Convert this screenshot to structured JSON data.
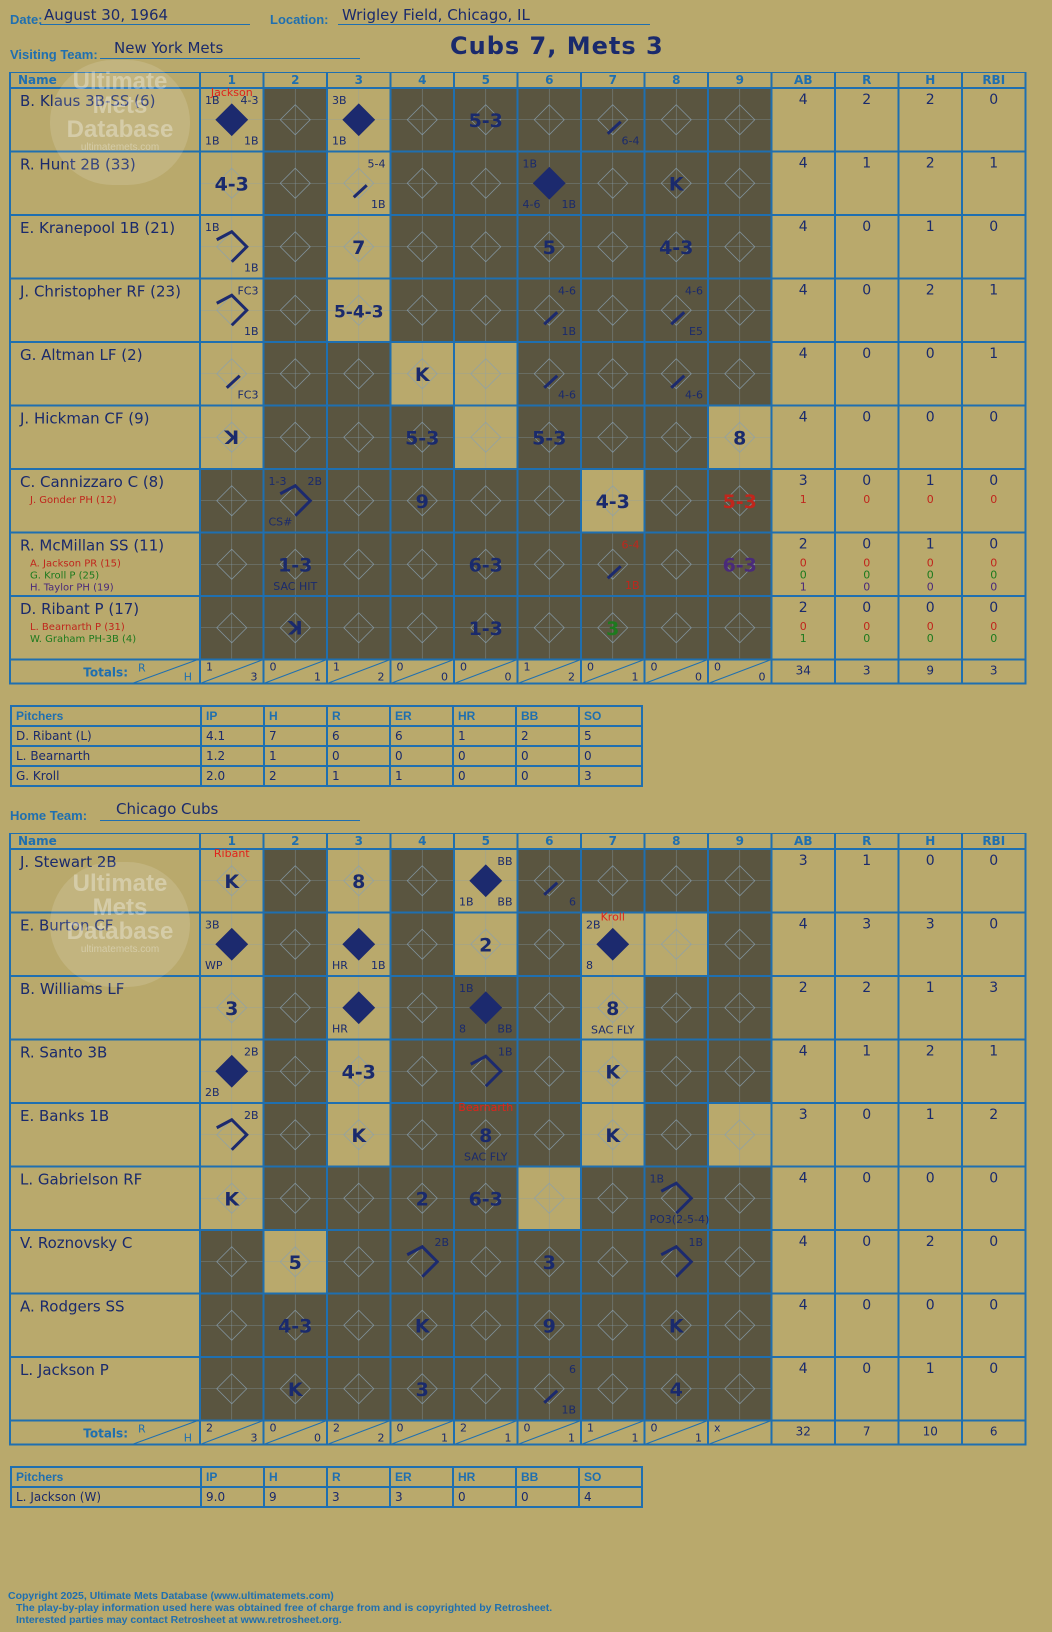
{
  "header": {
    "date_label": "Date:",
    "date": "August 30, 1964",
    "location_label": "Location:",
    "location": "Wrigley Field, Chicago, IL",
    "visiting_label": "Visiting Team:",
    "visiting_team": "New York Mets",
    "home_label": "Home Team:",
    "home_team": "Chicago Cubs",
    "title": "Cubs 7, Mets 3"
  },
  "columns": {
    "name": "Name",
    "innings": [
      "1",
      "2",
      "3",
      "4",
      "5",
      "6",
      "7",
      "8",
      "9"
    ],
    "stats": [
      "AB",
      "R",
      "H",
      "RBI"
    ],
    "totals": "Totals:",
    "r": "R",
    "h": "H"
  },
  "visitor": {
    "players": [
      {
        "name": "B. Klaus 3B-SS (6)",
        "subs": [],
        "stats": [
          [
            "4"
          ],
          [
            "2"
          ],
          [
            "2"
          ],
          [
            "0"
          ]
        ]
      },
      {
        "name": "R. Hunt 2B (33)",
        "subs": [],
        "stats": [
          [
            "4"
          ],
          [
            "1"
          ],
          [
            "2"
          ],
          [
            "1"
          ]
        ]
      },
      {
        "name": "E. Kranepool 1B (21)",
        "subs": [],
        "stats": [
          [
            "4"
          ],
          [
            "0"
          ],
          [
            "1"
          ],
          [
            "0"
          ]
        ]
      },
      {
        "name": "J. Christopher RF (23)",
        "subs": [],
        "stats": [
          [
            "4"
          ],
          [
            "0"
          ],
          [
            "2"
          ],
          [
            "1"
          ]
        ]
      },
      {
        "name": "G. Altman LF (2)",
        "subs": [],
        "stats": [
          [
            "4"
          ],
          [
            "0"
          ],
          [
            "0"
          ],
          [
            "1"
          ]
        ]
      },
      {
        "name": "J. Hickman CF (9)",
        "subs": [],
        "stats": [
          [
            "4"
          ],
          [
            "0"
          ],
          [
            "0"
          ],
          [
            "0"
          ]
        ]
      },
      {
        "name": "C. Cannizzaro C (8)",
        "subs": [
          {
            "n": "J. Gonder PH (12)",
            "c": "#c0261c"
          }
        ],
        "stats": [
          [
            "3",
            "1"
          ],
          [
            "0",
            "0"
          ],
          [
            "1",
            "0"
          ],
          [
            "0",
            "0"
          ]
        ]
      },
      {
        "name": "R. McMillan SS (11)",
        "subs": [
          {
            "n": "A. Jackson PR (15)",
            "c": "#c0261c"
          },
          {
            "n": "G. Kroll P (25)",
            "c": "#1e7a1e"
          },
          {
            "n": "H. Taylor PH (19)",
            "c": "#4a2a7a"
          }
        ],
        "stats": [
          [
            "2",
            "0",
            "0",
            "1"
          ],
          [
            "0",
            "0",
            "0",
            "0"
          ],
          [
            "1",
            "0",
            "0",
            "0"
          ],
          [
            "0",
            "0",
            "0",
            "0"
          ]
        ]
      },
      {
        "name": "D. Ribant P (17)",
        "subs": [
          {
            "n": "L. Bearnarth P (31)",
            "c": "#c0261c"
          },
          {
            "n": "W. Graham PH-3B (4)",
            "c": "#1e7a1e"
          }
        ],
        "stats": [
          [
            "2",
            "0",
            "1"
          ],
          [
            "0",
            "0",
            "0"
          ],
          [
            "0",
            "0",
            "0"
          ],
          [
            "0",
            "0",
            "0"
          ]
        ]
      }
    ],
    "cells": [
      {
        "r": 0,
        "c": 0,
        "t": [
          [
            "1B",
            "tl"
          ],
          [
            "4-3",
            "tr"
          ],
          [
            "1B",
            "bl"
          ],
          [
            "1B",
            "br"
          ]
        ],
        "d": "full",
        "note": "Jackson"
      },
      {
        "r": 0,
        "c": 2,
        "t": [
          [
            "3B",
            "tl"
          ],
          [
            "1B",
            "bl"
          ]
        ],
        "d": "full"
      },
      {
        "r": 0,
        "c": 4,
        "big": "5-3"
      },
      {
        "r": 0,
        "c": 6,
        "t": [
          [
            "6-4",
            "br"
          ]
        ],
        "slash": true
      },
      {
        "r": 1,
        "c": 0,
        "big": "4-3"
      },
      {
        "r": 1,
        "c": 2,
        "t": [
          [
            "5-4",
            "tr"
          ],
          [
            "1B",
            "br"
          ]
        ],
        "slash": true
      },
      {
        "r": 1,
        "c": 5,
        "t": [
          [
            "1B",
            "tl"
          ],
          [
            "4-6",
            "bl"
          ],
          [
            "1B",
            "br"
          ]
        ],
        "d": "full"
      },
      {
        "r": 1,
        "c": 7,
        "big": "K"
      },
      {
        "r": 2,
        "c": 0,
        "t": [
          [
            "1B",
            "tl"
          ],
          [
            "1B",
            "br"
          ]
        ],
        "d": "half"
      },
      {
        "r": 2,
        "c": 2,
        "big": "7"
      },
      {
        "r": 2,
        "c": 5,
        "big": "5"
      },
      {
        "r": 2,
        "c": 7,
        "big": "4-3"
      },
      {
        "r": 3,
        "c": 0,
        "t": [
          [
            "FC3",
            "tr"
          ],
          [
            "1B",
            "br"
          ]
        ],
        "d": "half"
      },
      {
        "r": 3,
        "c": 2,
        "big": "5-4-3"
      },
      {
        "r": 3,
        "c": 5,
        "t": [
          [
            "4-6",
            "tr"
          ],
          [
            "1B",
            "br"
          ]
        ],
        "slash": true
      },
      {
        "r": 3,
        "c": 7,
        "t": [
          [
            "4-6",
            "tr"
          ],
          [
            "E5",
            "br"
          ]
        ],
        "slash": true
      },
      {
        "r": 4,
        "c": 0,
        "t": [
          [
            "FC3",
            "br"
          ]
        ],
        "slash": true
      },
      {
        "r": 4,
        "c": 3,
        "big": "K"
      },
      {
        "r": 4,
        "c": 5,
        "t": [
          [
            "4-6",
            "br"
          ]
        ],
        "slash": true
      },
      {
        "r": 4,
        "c": 7,
        "t": [
          [
            "4-6",
            "br"
          ]
        ],
        "slash": true
      },
      {
        "r": 5,
        "c": 0,
        "big": "K",
        "rev": true
      },
      {
        "r": 5,
        "c": 3,
        "big": "5-3"
      },
      {
        "r": 5,
        "c": 5,
        "big": "5-3"
      },
      {
        "r": 5,
        "c": 8,
        "big": "8"
      },
      {
        "r": 6,
        "c": 1,
        "t": [
          [
            "1-3",
            "tl"
          ],
          [
            "2B",
            "tr"
          ],
          [
            "CS#",
            "bl"
          ]
        ],
        "d": "half"
      },
      {
        "r": 6,
        "c": 3,
        "big": "9"
      },
      {
        "r": 6,
        "c": 6,
        "big": "4-3"
      },
      {
        "r": 6,
        "c": 8,
        "big": "5-3",
        "col": "#c0261c"
      },
      {
        "r": 7,
        "c": 1,
        "big": "1-3",
        "t": [
          [
            "SAC HIT",
            "bw"
          ]
        ]
      },
      {
        "r": 7,
        "c": 4,
        "big": "6-3"
      },
      {
        "r": 7,
        "c": 6,
        "t": [
          [
            "6-4",
            "tr"
          ],
          [
            "1B",
            "br"
          ]
        ],
        "slash": true,
        "tcol": "#c0261c"
      },
      {
        "r": 7,
        "c": 8,
        "big": "6-3",
        "col": "#4a2a7a"
      },
      {
        "r": 8,
        "c": 1,
        "big": "K",
        "rev": true
      },
      {
        "r": 8,
        "c": 4,
        "big": "1-3"
      },
      {
        "r": 8,
        "c": 6,
        "big": "3",
        "col": "#1e7a1e"
      }
    ],
    "totals": [
      [
        "1",
        "3"
      ],
      [
        "0",
        "1"
      ],
      [
        "1",
        "2"
      ],
      [
        "0",
        "0"
      ],
      [
        "0",
        "0"
      ],
      [
        "1",
        "2"
      ],
      [
        "0",
        "1"
      ],
      [
        "0",
        "0"
      ],
      [
        "0",
        "0"
      ]
    ],
    "total_stats": [
      "34",
      "3",
      "9",
      "3"
    ],
    "pitchers_header": [
      "Pitchers",
      "IP",
      "H",
      "R",
      "ER",
      "HR",
      "BB",
      "SO"
    ],
    "pitchers": [
      [
        "D. Ribant (L)",
        "4.1",
        "7",
        "6",
        "6",
        "1",
        "2",
        "5"
      ],
      [
        "L. Bearnarth",
        "1.2",
        "1",
        "0",
        "0",
        "0",
        "0",
        "0"
      ],
      [
        "G. Kroll",
        "2.0",
        "2",
        "1",
        "1",
        "0",
        "0",
        "3"
      ]
    ]
  },
  "home": {
    "players": [
      {
        "name": "J. Stewart 2B",
        "subs": [],
        "stats": [
          [
            "3"
          ],
          [
            "1"
          ],
          [
            "0"
          ],
          [
            "0"
          ]
        ]
      },
      {
        "name": "E. Burton CF",
        "subs": [],
        "stats": [
          [
            "4"
          ],
          [
            "3"
          ],
          [
            "3"
          ],
          [
            "0"
          ]
        ]
      },
      {
        "name": "B. Williams LF",
        "subs": [],
        "stats": [
          [
            "2"
          ],
          [
            "2"
          ],
          [
            "1"
          ],
          [
            "3"
          ]
        ]
      },
      {
        "name": "R. Santo 3B",
        "subs": [],
        "stats": [
          [
            "4"
          ],
          [
            "1"
          ],
          [
            "2"
          ],
          [
            "1"
          ]
        ]
      },
      {
        "name": "E. Banks 1B",
        "subs": [],
        "stats": [
          [
            "3"
          ],
          [
            "0"
          ],
          [
            "1"
          ],
          [
            "2"
          ]
        ]
      },
      {
        "name": "L. Gabrielson RF",
        "subs": [],
        "stats": [
          [
            "4"
          ],
          [
            "0"
          ],
          [
            "0"
          ],
          [
            "0"
          ]
        ]
      },
      {
        "name": "V. Roznovsky C",
        "subs": [],
        "stats": [
          [
            "4"
          ],
          [
            "0"
          ],
          [
            "2"
          ],
          [
            "0"
          ]
        ]
      },
      {
        "name": "A. Rodgers SS",
        "subs": [],
        "stats": [
          [
            "4"
          ],
          [
            "0"
          ],
          [
            "0"
          ],
          [
            "0"
          ]
        ]
      },
      {
        "name": "L. Jackson P",
        "subs": [],
        "stats": [
          [
            "4"
          ],
          [
            "0"
          ],
          [
            "1"
          ],
          [
            "0"
          ]
        ]
      }
    ],
    "cells": [
      {
        "r": 0,
        "c": 0,
        "big": "K",
        "note": "Ribant"
      },
      {
        "r": 0,
        "c": 2,
        "big": "8"
      },
      {
        "r": 0,
        "c": 4,
        "t": [
          [
            "BB",
            "tr"
          ],
          [
            "1B",
            "bl"
          ],
          [
            "BB",
            "br"
          ]
        ],
        "d": "full"
      },
      {
        "r": 0,
        "c": 5,
        "t": [
          [
            "6",
            "br"
          ]
        ],
        "slash": true
      },
      {
        "r": 1,
        "c": 0,
        "t": [
          [
            "3B",
            "tl"
          ],
          [
            "WP",
            "bl"
          ]
        ],
        "d": "full"
      },
      {
        "r": 1,
        "c": 2,
        "t": [
          [
            "HR",
            "bl"
          ],
          [
            "1B",
            "br"
          ]
        ],
        "d": "full"
      },
      {
        "r": 1,
        "c": 4,
        "big": "2"
      },
      {
        "r": 1,
        "c": 6,
        "t": [
          [
            "2B",
            "tl"
          ],
          [
            "8",
            "bl"
          ]
        ],
        "d": "full",
        "note": "Kroll"
      },
      {
        "r": 2,
        "c": 0,
        "big": "3"
      },
      {
        "r": 2,
        "c": 2,
        "t": [
          [
            "HR",
            "bl"
          ]
        ],
        "d": "full"
      },
      {
        "r": 2,
        "c": 4,
        "t": [
          [
            "1B",
            "tl"
          ],
          [
            "8",
            "bl"
          ],
          [
            "BB",
            "br"
          ]
        ],
        "d": "full"
      },
      {
        "r": 2,
        "c": 6,
        "big": "8",
        "t": [
          [
            "SAC FLY",
            "bw"
          ]
        ]
      },
      {
        "r": 3,
        "c": 0,
        "t": [
          [
            "2B",
            "tr"
          ],
          [
            "2B",
            "bl"
          ]
        ],
        "d": "full"
      },
      {
        "r": 3,
        "c": 2,
        "big": "4-3"
      },
      {
        "r": 3,
        "c": 4,
        "t": [
          [
            "1B",
            "tr"
          ]
        ],
        "d": "half"
      },
      {
        "r": 3,
        "c": 6,
        "big": "K"
      },
      {
        "r": 4,
        "c": 0,
        "t": [
          [
            "2B",
            "tr"
          ]
        ],
        "d": "half"
      },
      {
        "r": 4,
        "c": 2,
        "big": "K"
      },
      {
        "r": 4,
        "c": 4,
        "big": "8",
        "t": [
          [
            "SAC FLY",
            "bw"
          ]
        ],
        "note": "Bearnarth"
      },
      {
        "r": 4,
        "c": 6,
        "big": "K"
      },
      {
        "r": 5,
        "c": 0,
        "big": "K"
      },
      {
        "r": 5,
        "c": 3,
        "big": "2"
      },
      {
        "r": 5,
        "c": 4,
        "big": "6-3"
      },
      {
        "r": 5,
        "c": 7,
        "t": [
          [
            "1B",
            "tl"
          ],
          [
            "PO3(2-5-4)",
            "bl"
          ]
        ],
        "d": "half"
      },
      {
        "r": 6,
        "c": 1,
        "big": "5"
      },
      {
        "r": 6,
        "c": 3,
        "t": [
          [
            "2B",
            "tr"
          ]
        ],
        "d": "half"
      },
      {
        "r": 6,
        "c": 5,
        "big": "3"
      },
      {
        "r": 6,
        "c": 7,
        "t": [
          [
            "1B",
            "tr"
          ]
        ],
        "d": "half"
      },
      {
        "r": 7,
        "c": 1,
        "big": "4-3"
      },
      {
        "r": 7,
        "c": 3,
        "big": "K"
      },
      {
        "r": 7,
        "c": 5,
        "big": "9"
      },
      {
        "r": 7,
        "c": 7,
        "big": "K"
      },
      {
        "r": 8,
        "c": 1,
        "big": "K"
      },
      {
        "r": 8,
        "c": 3,
        "big": "3"
      },
      {
        "r": 8,
        "c": 5,
        "t": [
          [
            "6",
            "tr"
          ],
          [
            "1B",
            "br"
          ]
        ],
        "slash": true
      },
      {
        "r": 8,
        "c": 7,
        "big": "4"
      }
    ],
    "totals": [
      [
        "2",
        "3"
      ],
      [
        "0",
        "0"
      ],
      [
        "2",
        "2"
      ],
      [
        "0",
        "1"
      ],
      [
        "2",
        "1"
      ],
      [
        "0",
        "1"
      ],
      [
        "1",
        "1"
      ],
      [
        "0",
        "1"
      ],
      [
        "x",
        ""
      ]
    ],
    "total_stats": [
      "32",
      "7",
      "10",
      "6"
    ],
    "pitchers_header": [
      "Pitchers",
      "IP",
      "H",
      "R",
      "ER",
      "HR",
      "BB",
      "SO"
    ],
    "pitchers": [
      [
        "L. Jackson (W)",
        "9.0",
        "9",
        "3",
        "3",
        "0",
        "0",
        "4"
      ]
    ]
  },
  "watermark": {
    "line1": "Ultimate",
    "line2": "Mets",
    "line3": "Database",
    "url": "ultimatemets.com"
  },
  "footer": {
    "l1": "Copyright 2025, Ultimate Mets Database (www.ultimatemets.com)",
    "l2": "The play-by-play information used here was obtained free of charge from and is copyrighted by Retrosheet.",
    "l3": "Interested parties may contact Retrosheet at www.retrosheet.org."
  },
  "colors": {
    "paper": "#b9a96c",
    "grid": "#1f6fb0",
    "ink": "#1a2a6c",
    "dark": "#5a5540",
    "note": "#e0231b"
  }
}
